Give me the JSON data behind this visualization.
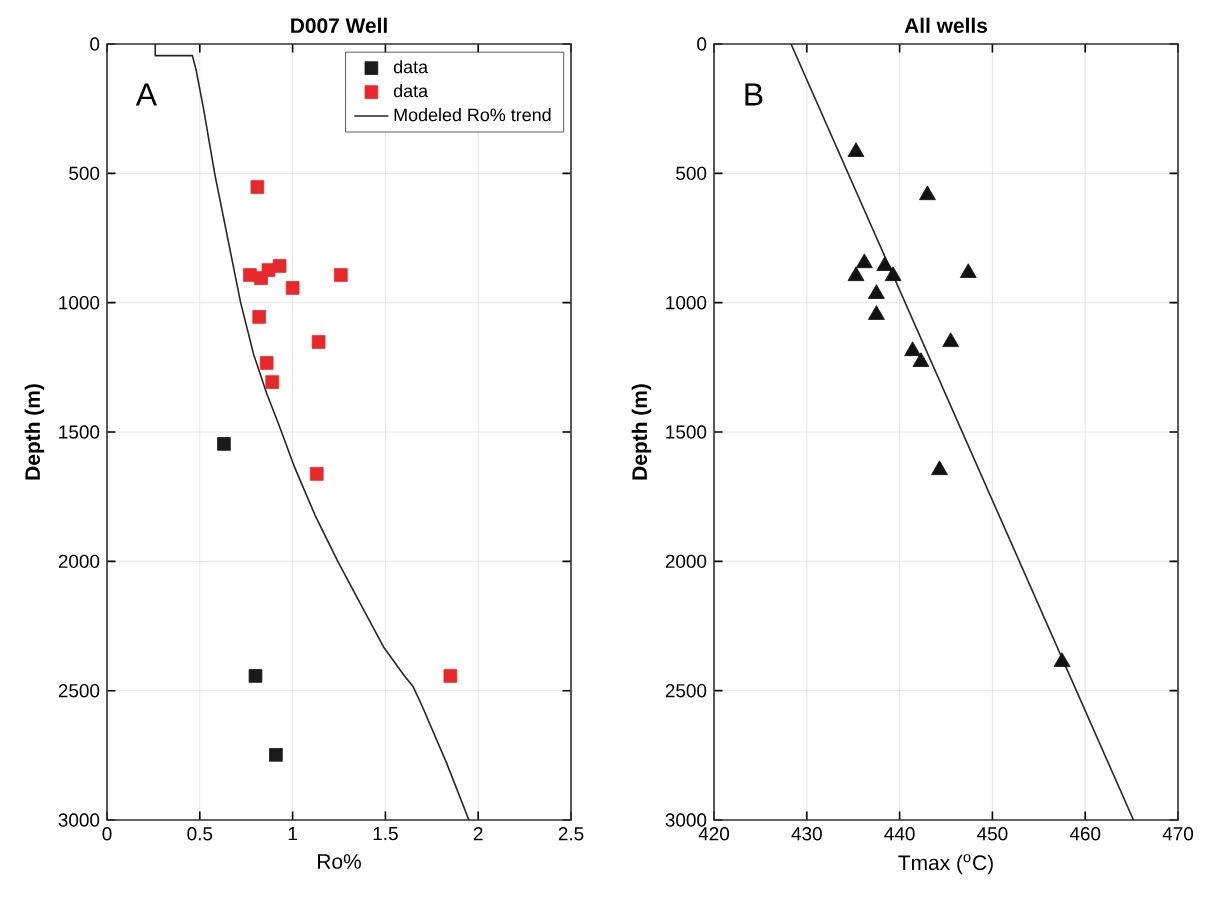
{
  "chart_data": [
    {
      "type": "scatter",
      "title": "D007 Well",
      "xlabel": "Ro%",
      "ylabel": "Depth (m)",
      "annotations": [
        "A"
      ],
      "xlim": [
        0,
        2.5
      ],
      "xticks": [
        0,
        0.5,
        1,
        1.5,
        2,
        2.5
      ],
      "ylim": [
        3000,
        0
      ],
      "yticks": [
        0,
        500,
        1000,
        1500,
        2000,
        2500,
        3000
      ],
      "grid": true,
      "legend": "top right",
      "series": [
        {
          "name": "data",
          "color": "#1a1a1a",
          "marker": "square",
          "x": [
            0.63,
            0.8,
            0.91
          ],
          "values": [
            1546,
            2443,
            2748
          ]
        },
        {
          "name": "data",
          "color": "#e8292b",
          "marker": "square",
          "x": [
            0.81,
            0.77,
            0.83,
            0.87,
            0.93,
            1.26,
            1.0,
            0.82,
            1.14,
            0.86,
            0.89,
            1.13,
            1.85
          ],
          "values": [
            553,
            893,
            905,
            874,
            858,
            893,
            943,
            1055,
            1152,
            1233,
            1307,
            1662,
            2443
          ]
        },
        {
          "name": "Modeled Ro% trend",
          "type": "line",
          "color": "#2b2623",
          "marker": "none",
          "x": [
            0.26,
            0.26,
            0.46,
            0.48,
            0.52,
            0.58,
            0.65,
            0.72,
            0.79,
            0.86,
            0.93,
            1.01,
            1.12,
            1.24,
            1.37,
            1.49,
            1.6,
            1.65,
            1.7,
            1.83,
            1.95
          ],
          "values": [
            0,
            45,
            45,
            100,
            250,
            500,
            750,
            1000,
            1200,
            1350,
            1480,
            1635,
            1820,
            1995,
            2170,
            2331,
            2440,
            2485,
            2563,
            2780,
            3000
          ]
        }
      ]
    },
    {
      "type": "scatter",
      "title": "All wells",
      "xlabel": "Tmax ($^{o}$C)",
      "ylabel": "Depth (m)",
      "annotations": [
        "B"
      ],
      "xlim": [
        420,
        470
      ],
      "xticks": [
        420,
        430,
        440,
        450,
        460,
        470
      ],
      "ylim": [
        3000,
        0
      ],
      "yticks": [
        0,
        500,
        1000,
        1500,
        2000,
        2500,
        3000
      ],
      "grid": true,
      "series": [
        {
          "color": "#111111",
          "marker": "triangle",
          "x": [
            435.3,
            443.0,
            436.2,
            435.3,
            438.4,
            439.3,
            447.4,
            437.5,
            437.5,
            445.5,
            441.4,
            442.3,
            444.3,
            457.5
          ],
          "values": [
            417,
            584,
            847,
            897,
            858,
            897,
            885,
            966,
            1047,
            1152,
            1187,
            1229,
            1647,
            2389
          ]
        },
        {
          "type": "line",
          "color": "#2b2623",
          "marker": "none",
          "x": [
            428.3,
            465.2
          ],
          "values": [
            0,
            3000
          ]
        }
      ]
    }
  ]
}
